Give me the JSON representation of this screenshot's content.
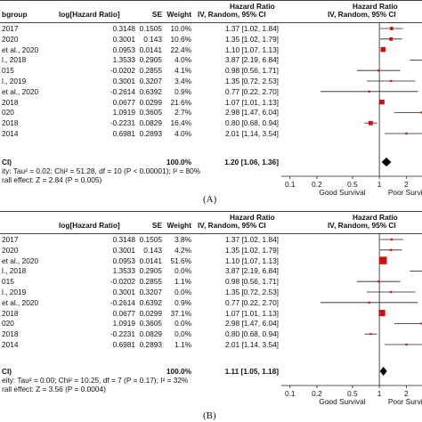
{
  "chart_data": [
    {
      "type": "forest",
      "panel_label": "(A)",
      "headers": {
        "study": "bgroup",
        "loghr": "log[Hazard Ratio]",
        "se": "SE",
        "weight": "Weight",
        "hr_top": "Hazard Ratio",
        "hr_bottom": "IV, Random, 95% CI",
        "plot_top": "Hazard Ratio",
        "plot_bottom": "IV, Random, 95% CI"
      },
      "rows": [
        {
          "study": "2017",
          "loghr": "0.3148",
          "se": "0.1505",
          "weight": "10.0%",
          "ci_text": "1.37 [1.02, 1.84]",
          "hr": 1.37,
          "lo": 1.02,
          "hi": 1.84
        },
        {
          "study": "2020",
          "loghr": "0.3001",
          "se": "0.143",
          "weight": "10.6%",
          "ci_text": "1.35 [1.02, 1.79]",
          "hr": 1.35,
          "lo": 1.02,
          "hi": 1.79
        },
        {
          "study": "et al., 2020",
          "loghr": "0.0953",
          "se": "0.0141",
          "weight": "22.4%",
          "ci_text": "1.10 [1.07, 1.13]",
          "hr": 1.1,
          "lo": 1.07,
          "hi": 1.13
        },
        {
          "study": "l., 2018",
          "loghr": "1.3533",
          "se": "0.2905",
          "weight": "4.0%",
          "ci_text": "3.87 [2.19, 6.84]",
          "hr": 3.87,
          "lo": 2.19,
          "hi": 6.84
        },
        {
          "study": "015",
          "loghr": "-0.0202",
          "se": "0.2855",
          "weight": "4.1%",
          "ci_text": "0.98 [0.56, 1.71]",
          "hr": 0.98,
          "lo": 0.56,
          "hi": 1.71
        },
        {
          "study": "l., 2019",
          "loghr": "0.3001",
          "se": "0.3207",
          "weight": "3.4%",
          "ci_text": "1.35 [0.72, 2.53]",
          "hr": 1.35,
          "lo": 0.72,
          "hi": 2.53
        },
        {
          "study": "et al., 2020",
          "loghr": "-0.2614",
          "se": "0.6392",
          "weight": "0.9%",
          "ci_text": "0.77 [0.22, 2.70]",
          "hr": 0.77,
          "lo": 0.22,
          "hi": 2.7
        },
        {
          "study": "2018",
          "loghr": "0.0677",
          "se": "0.0299",
          "weight": "21.6%",
          "ci_text": "1.07 [1.01, 1.13]",
          "hr": 1.07,
          "lo": 1.01,
          "hi": 1.13
        },
        {
          "study": "020",
          "loghr": "1.0919",
          "se": "0.3605",
          "weight": "2.7%",
          "ci_text": "2.98 [1.47, 6.04]",
          "hr": 2.98,
          "lo": 1.47,
          "hi": 6.04
        },
        {
          "study": "2018",
          "loghr": "-0.2231",
          "se": "0.0829",
          "weight": "16.4%",
          "ci_text": "0.80 [0.68, 0.94]",
          "hr": 0.8,
          "lo": 0.68,
          "hi": 0.94
        },
        {
          "study": "2014",
          "loghr": "0.6981",
          "se": "0.2893",
          "weight": "4.0%",
          "ci_text": "2.01 [1.14, 3.54]",
          "hr": 2.01,
          "lo": 1.14,
          "hi": 3.54
        }
      ],
      "total": {
        "label": "CI)",
        "weight": "100.0%",
        "ci_text": "1.20 [1.06, 1.36]",
        "hr": 1.2,
        "lo": 1.06,
        "hi": 1.36
      },
      "heterogeneity": "ity: Tau² = 0.02; Chi² = 51.28, df = 10 (P < 0.00001); I² = 80%",
      "overall_effect": "rall effect: Z = 2.84 (P = 0.005)",
      "x_axis": {
        "scale": "log",
        "ticks": [
          "0.1",
          "0.2",
          "0.5",
          "1",
          "2"
        ],
        "tick_values": [
          0.1,
          0.2,
          0.5,
          1,
          2
        ],
        "xlim": [
          0.08,
          3.0
        ]
      },
      "favours_left": "Good Survival",
      "favours_right": "Poor Surviva"
    },
    {
      "type": "forest",
      "panel_label": "(B)",
      "headers": {
        "study": "",
        "loghr": "log[Hazard Ratio]",
        "se": "SE",
        "weight": "Weight",
        "hr_top": "Hazard Ratio",
        "hr_bottom": "IV, Random, 95% CI",
        "plot_top": "Hazard Ratio",
        "plot_bottom": "IV, Random, 95% CI"
      },
      "rows": [
        {
          "study": "2017",
          "loghr": "0.3148",
          "se": "0.1505",
          "weight": "3.8%",
          "ci_text": "1.37 [1.02, 1.84]",
          "hr": 1.37,
          "lo": 1.02,
          "hi": 1.84
        },
        {
          "study": "2020",
          "loghr": "0.3001",
          "se": "0.143",
          "weight": "4.2%",
          "ci_text": "1.35 [1.02, 1.79]",
          "hr": 1.35,
          "lo": 1.02,
          "hi": 1.79
        },
        {
          "study": "et al., 2020",
          "loghr": "0.0953",
          "se": "0.0141",
          "weight": "51.6%",
          "ci_text": "1.10 [1.07, 1.13]",
          "hr": 1.1,
          "lo": 1.07,
          "hi": 1.13
        },
        {
          "study": "l., 2018",
          "loghr": "1.3533",
          "se": "0.2905",
          "weight": "0.0%",
          "ci_text": "3.87 [2.19, 6.84]",
          "hr": 3.87,
          "lo": 2.19,
          "hi": 6.84
        },
        {
          "study": "015",
          "loghr": "-0.0202",
          "se": "0.2855",
          "weight": "1.1%",
          "ci_text": "0.98 [0.56, 1.71]",
          "hr": 0.98,
          "lo": 0.56,
          "hi": 1.71
        },
        {
          "study": "l., 2019",
          "loghr": "0.3001",
          "se": "0.3207",
          "weight": "0.0%",
          "ci_text": "1.35 [0.72, 2.53]",
          "hr": 1.35,
          "lo": 0.72,
          "hi": 2.53
        },
        {
          "study": "et al., 2020",
          "loghr": "-0.2614",
          "se": "0.6392",
          "weight": "0.9%",
          "ci_text": "0.77 [0.22, 2.70]",
          "hr": 0.77,
          "lo": 0.22,
          "hi": 2.7
        },
        {
          "study": "2018",
          "loghr": "0.0677",
          "se": "0.0299",
          "weight": "37.1%",
          "ci_text": "1.07 [1.01, 1.13]",
          "hr": 1.07,
          "lo": 1.01,
          "hi": 1.13
        },
        {
          "study": "020",
          "loghr": "1.0919",
          "se": "0.3605",
          "weight": "0.0%",
          "ci_text": "2.98 [1.47, 6.04]",
          "hr": 2.98,
          "lo": 1.47,
          "hi": 6.04
        },
        {
          "study": "2018",
          "loghr": "-0.2231",
          "se": "0.0829",
          "weight": "0.0%",
          "ci_text": "0.80 [0.68, 0.94]",
          "hr": 0.8,
          "lo": 0.68,
          "hi": 0.94
        },
        {
          "study": "2014",
          "loghr": "0.6981",
          "se": "0.2893",
          "weight": "1.1%",
          "ci_text": "2.01 [1.14, 3.54]",
          "hr": 2.01,
          "lo": 1.14,
          "hi": 3.54
        }
      ],
      "total": {
        "label": "CI)",
        "weight": "100.0%",
        "ci_text": "1.11 [1.05, 1.18]",
        "hr": 1.11,
        "lo": 1.05,
        "hi": 1.18
      },
      "heterogeneity": "eity: Tau² = 0.00; Chi² = 10.25, df = 7 (P = 0.17); I² = 32%",
      "overall_effect": "rall effect: Z = 3.56 (P = 0.0004)",
      "x_axis": {
        "scale": "log",
        "ticks": [
          "0.1",
          "0.2",
          "0.5",
          "1",
          "2"
        ],
        "tick_values": [
          0.1,
          0.2,
          0.5,
          1,
          2
        ],
        "xlim": [
          0.08,
          3.0
        ]
      },
      "favours_left": "Good Survival",
      "favours_right": "Poor Surviva"
    }
  ],
  "colors": {
    "square": "#cc1111",
    "diamond": "#000000",
    "line": "#222222"
  }
}
